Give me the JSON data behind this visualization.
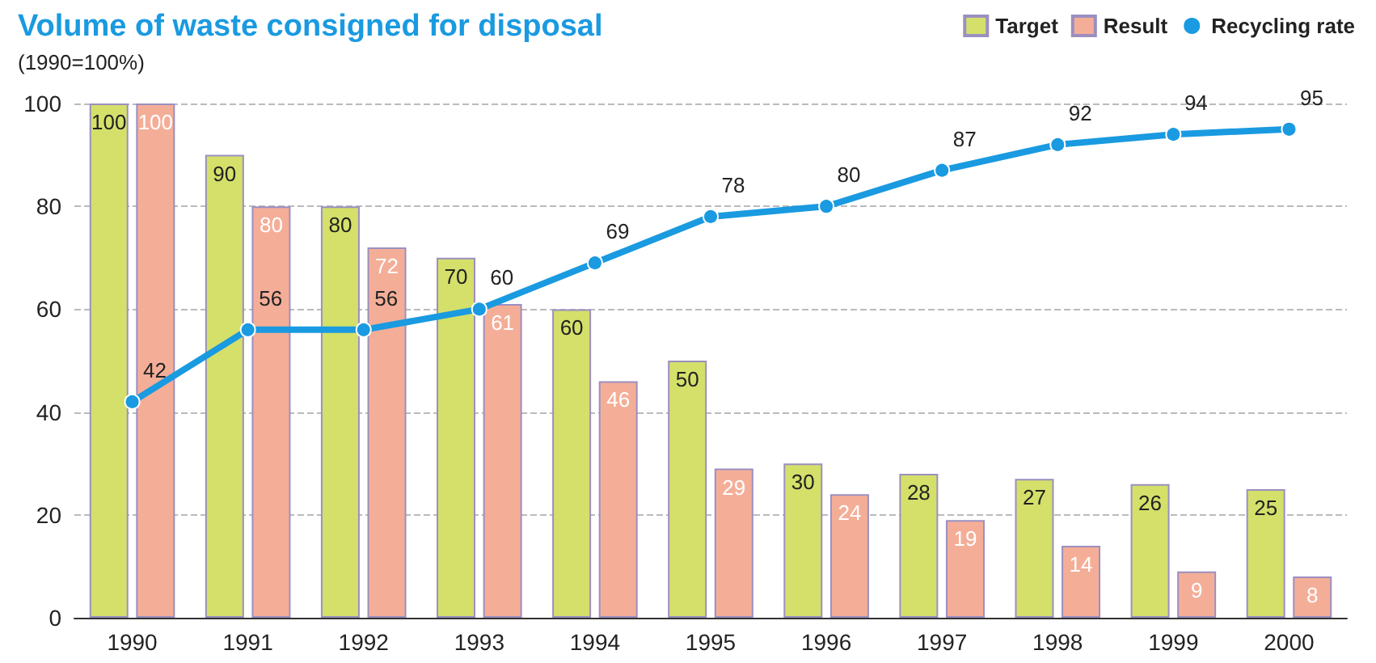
{
  "chart_data": {
    "type": "bar",
    "title": "Volume of waste consigned for disposal",
    "subtitle": "(1990=100%)",
    "categories": [
      "1990",
      "1991",
      "1992",
      "1993",
      "1994",
      "1995",
      "1996",
      "1997",
      "1998",
      "1999",
      "2000"
    ],
    "series": [
      {
        "name": "Target",
        "color": "#d4e06a",
        "values": [
          100,
          90,
          80,
          70,
          60,
          50,
          30,
          28,
          27,
          26,
          25
        ]
      },
      {
        "name": "Result",
        "color": "#f4ae98",
        "values": [
          100,
          80,
          72,
          61,
          46,
          29,
          24,
          19,
          14,
          9,
          8
        ]
      },
      {
        "name": "Recycling rate",
        "type": "line",
        "color": "#1a9ae0",
        "marker": "circle",
        "values": [
          42,
          56,
          56,
          60,
          69,
          78,
          80,
          87,
          92,
          94,
          95
        ]
      }
    ],
    "ylim": [
      0,
      100
    ],
    "yticks": [
      0,
      20,
      40,
      60,
      80,
      100
    ],
    "grid": "y",
    "legend": "top right",
    "data_labels": true
  }
}
